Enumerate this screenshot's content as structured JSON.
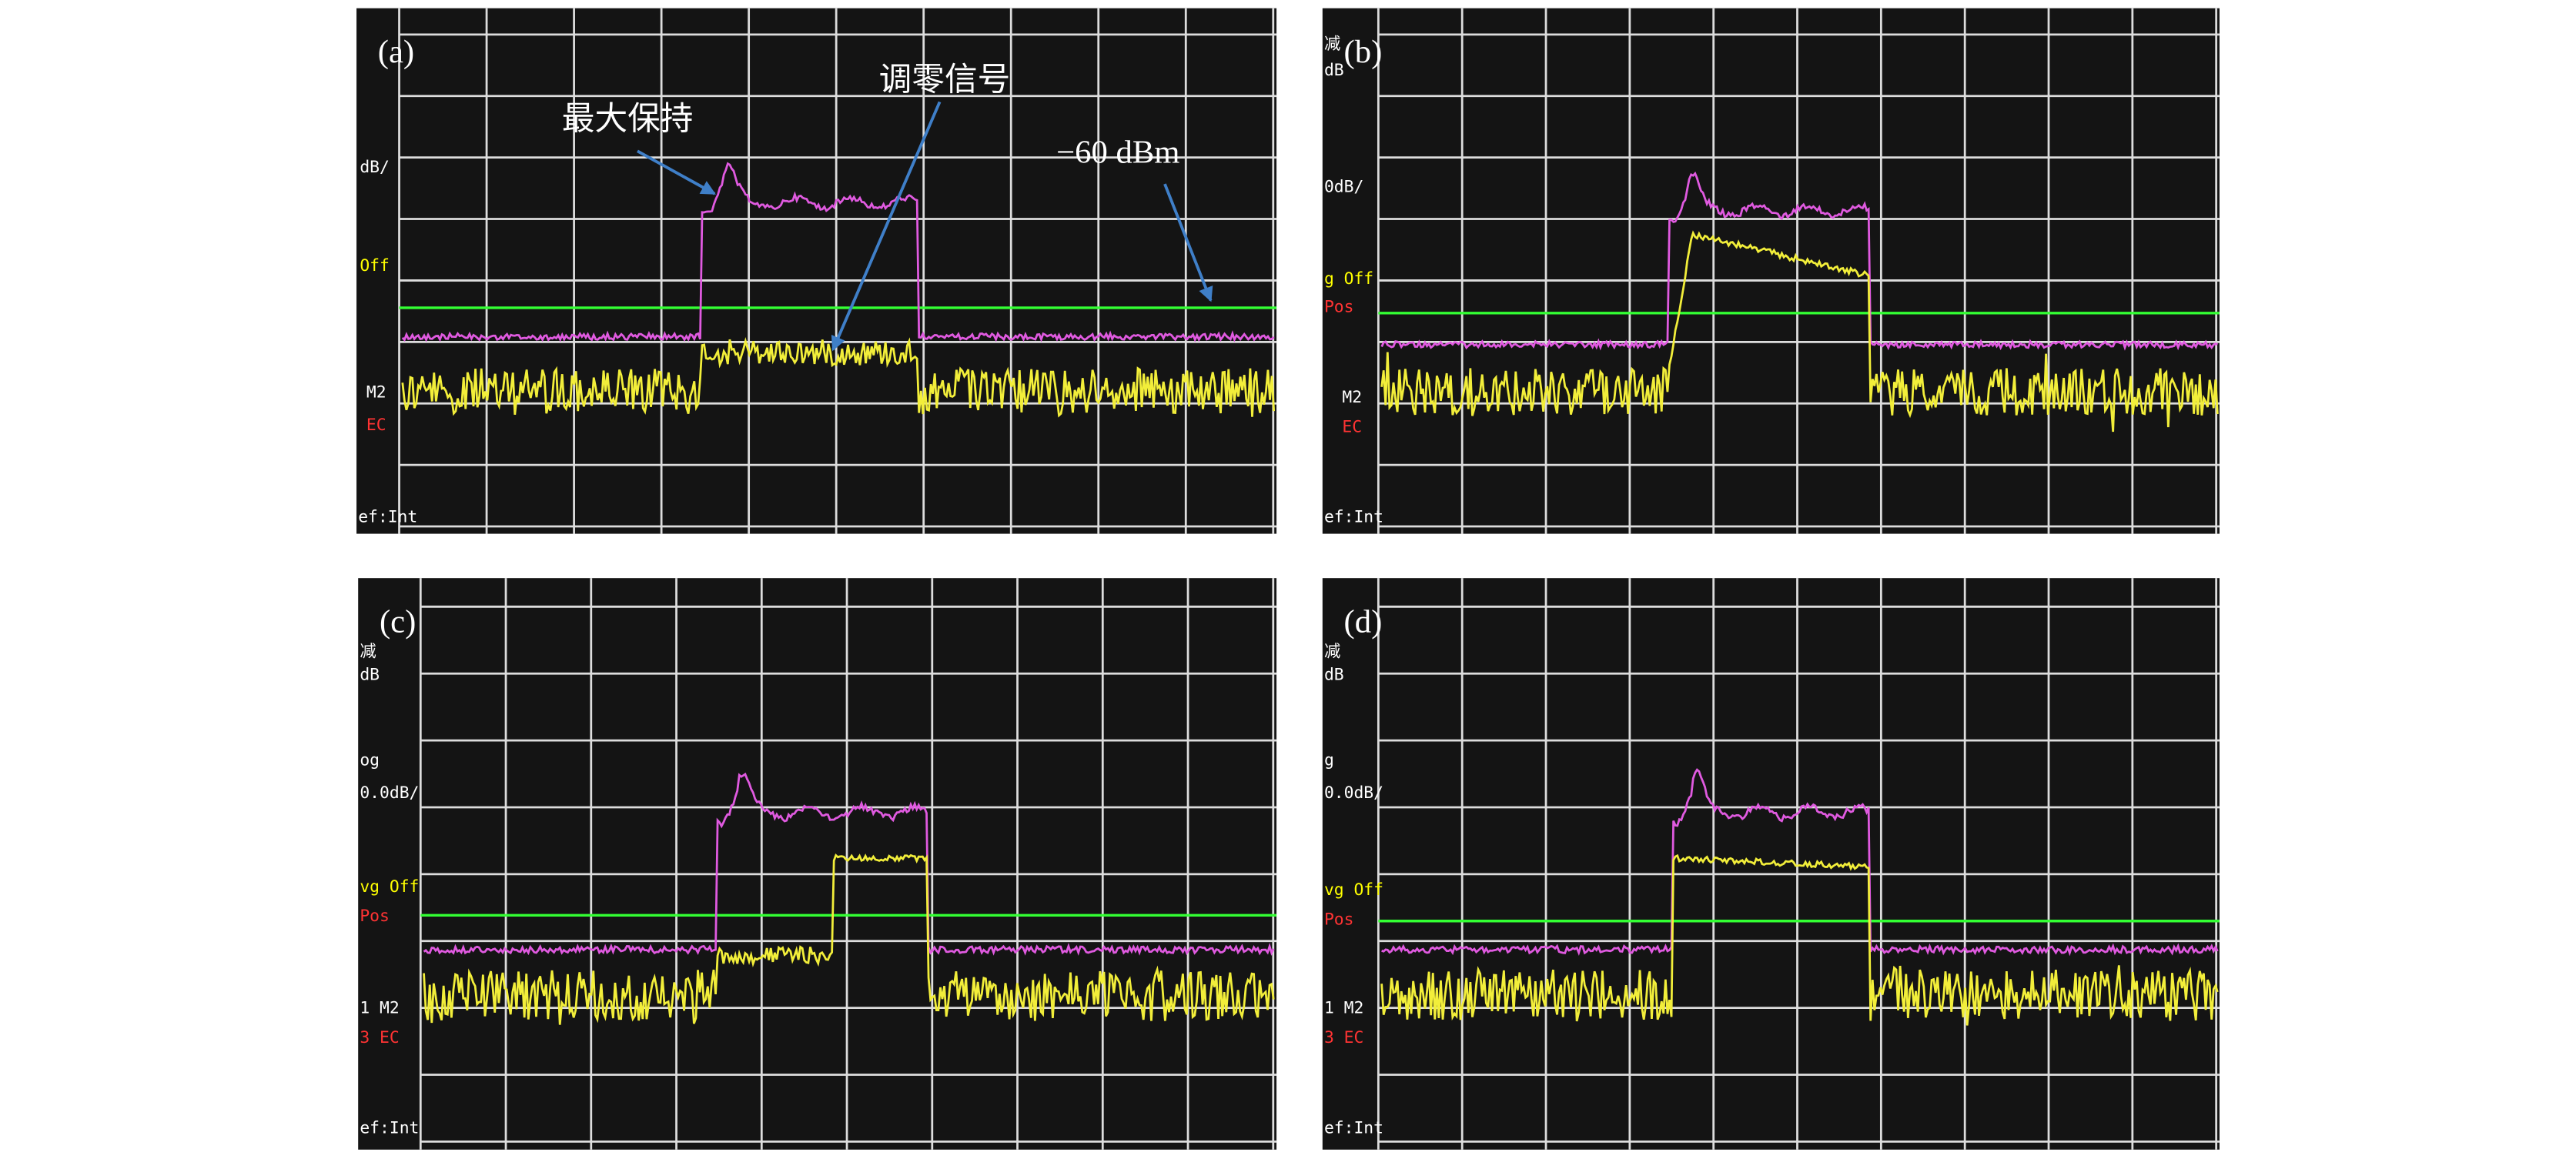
{
  "panels": [
    {
      "label": "(a)",
      "screen_texts": [
        "dB/",
        "Off",
        "M2",
        "EC",
        "ef:Int"
      ]
    },
    {
      "label": "(b)",
      "screen_texts": [
        "减",
        "dB",
        "0dB/",
        "g Off",
        "Pos",
        "M2",
        "EC",
        "ef:Int"
      ]
    },
    {
      "label": "(c)",
      "screen_texts": [
        "减",
        "dB",
        "og",
        "0.0dB/",
        "vg Off",
        "Pos",
        "1  M2",
        "3  EC",
        "ef:Int"
      ]
    },
    {
      "label": "(d)",
      "screen_texts": [
        "减",
        "dB",
        "g",
        "0.0dB/",
        "vg Off",
        "Pos",
        "1  M2",
        "3  EC",
        "ef:Int"
      ]
    }
  ],
  "annotations": [
    "最大保持",
    "调零信号",
    "−60 dBm"
  ]
}
